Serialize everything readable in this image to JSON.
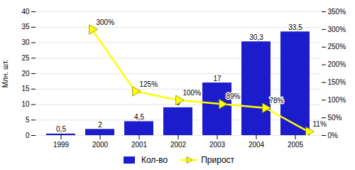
{
  "chart_data": {
    "type": "bar",
    "categories": [
      "1999",
      "2000",
      "2001",
      "2002",
      "2003",
      "2004",
      "2005"
    ],
    "series": [
      {
        "name": "Кол-во",
        "type": "bar",
        "color": "#1C1CCC",
        "values": [
          0.5,
          2,
          4.5,
          9,
          17,
          30.3,
          33.5
        ],
        "value_labels": [
          "0,5",
          "2",
          "4,5",
          "9",
          "17",
          "30,3",
          "33,5"
        ]
      },
      {
        "name": "Прирост",
        "type": "line",
        "axis": "y2",
        "color": "#FFFF00",
        "marker": "triangle-right",
        "values": [
          null,
          300,
          125,
          100,
          89,
          78,
          11
        ],
        "value_labels": [
          null,
          "300%",
          "125%",
          "100%",
          "89%",
          "78%",
          "11%"
        ]
      }
    ],
    "ylabel": "Млн. шт.",
    "ylim": [
      0,
      40
    ],
    "yticks": [
      0,
      5,
      10,
      15,
      20,
      25,
      30,
      35,
      40
    ],
    "y2lim": [
      0,
      350
    ],
    "y2ticks": [
      {
        "value": 0,
        "label": "0%"
      },
      {
        "value": 50,
        "label": "50%"
      },
      {
        "value": 100,
        "label": "100%"
      },
      {
        "value": 150,
        "label": "150%"
      },
      {
        "value": 200,
        "label": "200%"
      },
      {
        "value": 250,
        "label": "250%"
      },
      {
        "value": 300,
        "label": "300%"
      },
      {
        "value": 350,
        "label": "350%"
      }
    ],
    "grid": true,
    "data_labels": true,
    "legend": "bottom"
  }
}
